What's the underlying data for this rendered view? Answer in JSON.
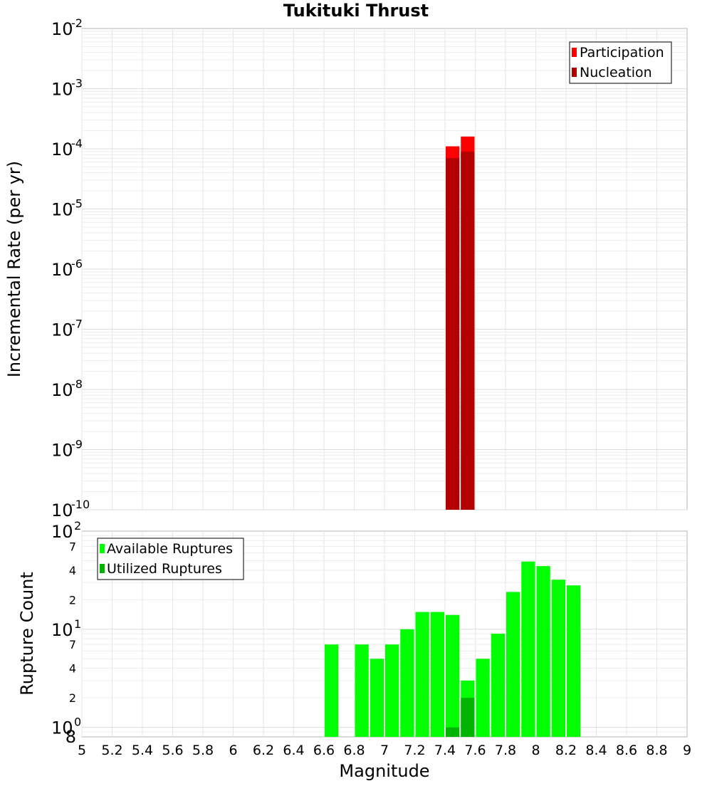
{
  "chart_data": [
    {
      "type": "bar",
      "title": "Tukituki Thrust",
      "xlabel": "",
      "ylabel": "Incremental Rate (per yr)",
      "yscale": "log",
      "ylim": [
        1e-10,
        0.01
      ],
      "xlim": [
        5,
        9
      ],
      "grid": true,
      "legend_position": "top-right",
      "ytick_labels": [
        {
          "value": 0.01,
          "base": "10",
          "exp": "-2"
        },
        {
          "value": 0.001,
          "base": "10",
          "exp": "-3"
        },
        {
          "value": 0.0001,
          "base": "10",
          "exp": "-4"
        },
        {
          "value": 1e-05,
          "base": "10",
          "exp": "-5"
        },
        {
          "value": 1e-06,
          "base": "10",
          "exp": "-6"
        },
        {
          "value": 1e-07,
          "base": "10",
          "exp": "-7"
        },
        {
          "value": 1e-08,
          "base": "10",
          "exp": "-8"
        },
        {
          "value": 1e-09,
          "base": "10",
          "exp": "-9"
        },
        {
          "value": 1e-10,
          "base": "10",
          "exp": "-10"
        }
      ],
      "bin_width": 0.1,
      "series": [
        {
          "name": "Participation",
          "color": "#ff0000",
          "x": [
            7.45,
            7.55
          ],
          "values": [
            0.00011,
            0.00016
          ]
        },
        {
          "name": "Nucleation",
          "color": "#b30000",
          "x": [
            7.45,
            7.55
          ],
          "values": [
            7e-05,
            9e-05
          ]
        }
      ]
    },
    {
      "type": "bar",
      "title": "",
      "xlabel": "Magnitude",
      "ylabel": "Rupture Count",
      "yscale": "log",
      "ylim": [
        0.8,
        100
      ],
      "xlim": [
        5,
        9
      ],
      "grid": true,
      "legend_position": "top-left",
      "ytick_labels": [
        {
          "value": 100,
          "base": "10",
          "exp": "2",
          "kind": "major"
        },
        {
          "value": 70,
          "label": "7",
          "kind": "minor"
        },
        {
          "value": 40,
          "label": "4",
          "kind": "minor"
        },
        {
          "value": 20,
          "label": "2",
          "kind": "minor"
        },
        {
          "value": 10,
          "base": "10",
          "exp": "1",
          "kind": "major"
        },
        {
          "value": 7,
          "label": "7",
          "kind": "minor"
        },
        {
          "value": 4,
          "label": "4",
          "kind": "minor"
        },
        {
          "value": 2,
          "label": "2",
          "kind": "minor"
        },
        {
          "value": 1,
          "base": "10",
          "exp": "0",
          "kind": "major"
        },
        {
          "value": 0.8,
          "label": "8",
          "kind": "minor-bottom"
        }
      ],
      "x_ticks": [
        "5",
        "5.2",
        "5.4",
        "5.6",
        "5.8",
        "6",
        "6.2",
        "6.4",
        "6.6",
        "6.8",
        "7",
        "7.2",
        "7.4",
        "7.6",
        "7.8",
        "8",
        "8.2",
        "8.4",
        "8.6",
        "8.8",
        "9"
      ],
      "bin_width": 0.1,
      "series": [
        {
          "name": "Available Ruptures",
          "color": "#00ff00",
          "x": [
            6.65,
            6.85,
            6.95,
            7.05,
            7.15,
            7.25,
            7.35,
            7.45,
            7.55,
            7.65,
            7.75,
            7.85,
            7.95,
            8.05,
            8.15,
            8.25
          ],
          "values": [
            7,
            7,
            5,
            7,
            10,
            15,
            15,
            14,
            3,
            5,
            9,
            24,
            49,
            44,
            32,
            28
          ]
        },
        {
          "name": "Utilized Ruptures",
          "color": "#00b400",
          "x": [
            7.45,
            7.55
          ],
          "values": [
            1,
            2
          ]
        }
      ]
    }
  ]
}
